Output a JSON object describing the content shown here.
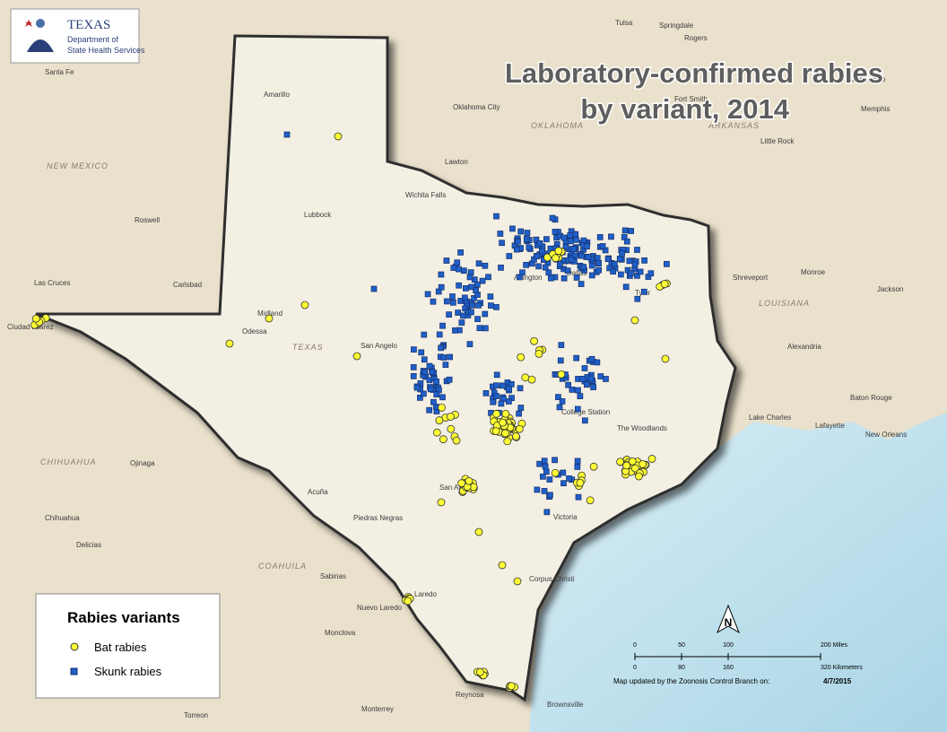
{
  "header": {
    "logo": {
      "name": "TEXAS",
      "line1": "Department of",
      "line2": "State Health Services"
    },
    "title_line1": "Laboratory-confirmed rabies",
    "title_line2": "by variant, 2014"
  },
  "legend": {
    "title": "Rabies variants",
    "items": [
      "Bat rabies",
      "Skunk rabies"
    ]
  },
  "scale_bar": {
    "miles": [
      "0",
      "50",
      "100",
      "200 Miles"
    ],
    "kilometers": [
      "0",
      "80",
      "160",
      "320 Kilometers"
    ]
  },
  "north_arrow": "N",
  "update_note": {
    "text": "Map updated by the Zoonosis Control Branch on:",
    "date": "4/7/2015"
  },
  "places": [
    "Santa Fe",
    "Roswell",
    "Carlsbad",
    "Las Cruces",
    "Ciudad Juárez",
    "Amarillo",
    "Lubbock",
    "Midland",
    "Odessa",
    "San Angelo",
    "Wichita Falls",
    "Lawton",
    "Oklahoma City",
    "Dallas",
    "Arlington",
    "Tyler",
    "College Station",
    "San Antonio",
    "Victoria",
    "Corpus Christi",
    "Laredo",
    "Nuevo Laredo",
    "Brownsville",
    "Reynosa",
    "Monterrey",
    "Torreon",
    "Monclova",
    "Sabinas",
    "Piedras Negras",
    "Acuña",
    "Chihuahua",
    "Delicias",
    "Ojinaga",
    "Shreveport",
    "Monroe",
    "Alexandria",
    "Lake Charles",
    "Lafayette",
    "Baton Rouge",
    "New Orleans",
    "Jackson",
    "Memphis",
    "Little Rock",
    "Fort Smith",
    "Tulsa",
    "Springdale",
    "Jonesboro",
    "Rogers",
    "The Woodlands"
  ],
  "regions": [
    "NEW MEXICO",
    "TEXAS",
    "OKLAHOMA",
    "ARKANSAS",
    "LOUISIANA",
    "CHIHUAHUA",
    "COAHUILA"
  ]
}
